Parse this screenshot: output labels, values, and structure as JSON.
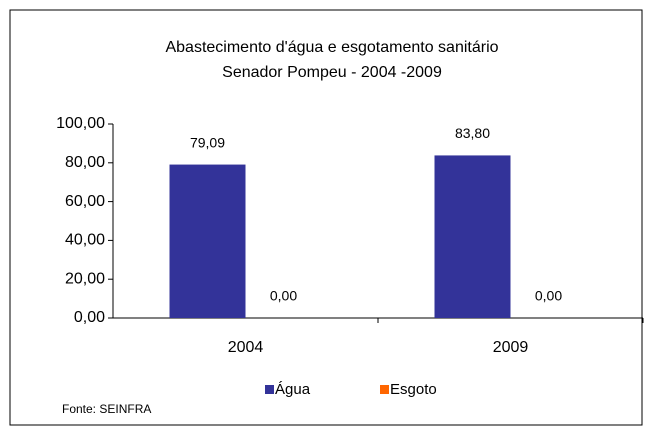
{
  "chart_data": {
    "type": "bar",
    "title": "Abastecimento d'água e esgotamento sanitário",
    "subtitle": "Senador Pompeu - 2004 -2009",
    "categories": [
      "2004",
      "2009"
    ],
    "series": [
      {
        "name": "Água",
        "color": "#333399",
        "values": [
          79.09,
          83.8
        ],
        "value_labels": [
          "79,09",
          "83,80"
        ]
      },
      {
        "name": "Esgoto",
        "color": "#ff6600",
        "values": [
          0,
          0
        ],
        "value_labels": [
          "0,00",
          "0,00"
        ]
      }
    ],
    "ylim": [
      0,
      100
    ],
    "yticks": [
      {
        "value": 0,
        "label": "0,00"
      },
      {
        "value": 20,
        "label": "20,00"
      },
      {
        "value": 40,
        "label": "40,00"
      },
      {
        "value": 60,
        "label": "60,00"
      },
      {
        "value": 80,
        "label": "80,00"
      },
      {
        "value": 100,
        "label": "100,00"
      }
    ],
    "legend": "bottom",
    "source": "Fonte: SEINFRA"
  }
}
